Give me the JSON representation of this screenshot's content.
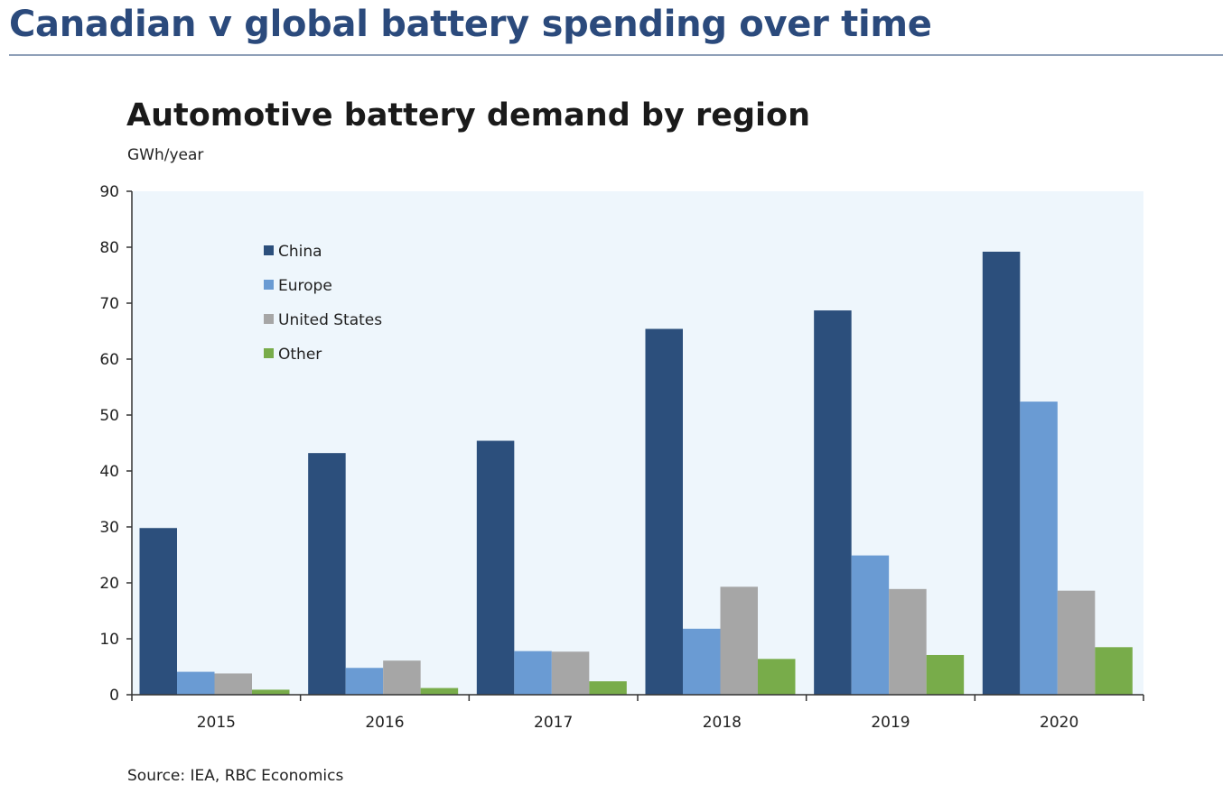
{
  "page": {
    "heading": "Canadian v global battery spending over time",
    "source": "Source: IEA, RBC Economics"
  },
  "chart_data": {
    "type": "bar",
    "title": "Automotive battery demand by region",
    "ylabel": "GWh/year",
    "xlabel": "",
    "categories": [
      "2015",
      "2016",
      "2017",
      "2018",
      "2019",
      "2020"
    ],
    "ylim": [
      0,
      90
    ],
    "yticks": [
      0,
      10,
      20,
      30,
      40,
      50,
      60,
      70,
      80,
      90
    ],
    "grid": false,
    "legend_position": "top-left",
    "plot_background": "#eef6fc",
    "series": [
      {
        "name": "China",
        "color": "#2c4f7c",
        "values": [
          29.8,
          43.2,
          45.4,
          65.4,
          68.7,
          79.2
        ]
      },
      {
        "name": "Europe",
        "color": "#6a9bd3",
        "values": [
          4.1,
          4.8,
          7.8,
          11.8,
          24.9,
          52.4
        ]
      },
      {
        "name": "United States",
        "color": "#a6a6a6",
        "values": [
          3.8,
          6.1,
          7.7,
          19.3,
          18.9,
          18.6
        ]
      },
      {
        "name": "Other",
        "color": "#78ac4a",
        "values": [
          0.9,
          1.2,
          2.4,
          6.4,
          7.1,
          8.5
        ]
      }
    ]
  }
}
